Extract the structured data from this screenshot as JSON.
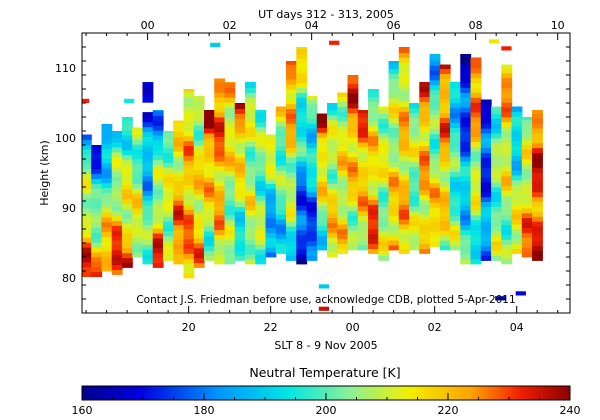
{
  "chart_data": {
    "type": "heatmap",
    "title_top": "UT days 312 - 313, 2005",
    "xlabel_bottom": "SLT 8 - 9 Nov 2005",
    "ylabel": "Height (km)",
    "annotation": "Contact J.S. Friedman before use, acknowledge CDB, plotted 5-Apr-2011",
    "top_ticks": [
      "00",
      "02",
      "04",
      "06",
      "08",
      "10"
    ],
    "top_tick_hours": [
      0,
      2,
      4,
      6,
      8,
      10
    ],
    "bottom_ticks": [
      "20",
      "22",
      "00",
      "02",
      "04"
    ],
    "bottom_tick_hours": [
      1,
      3,
      5,
      7,
      9
    ],
    "y_ticks": [
      80,
      90,
      100,
      110
    ],
    "xlim_ut_hours": [
      -1.6,
      10.3
    ],
    "ylim_km": [
      75,
      115
    ],
    "colorbar": {
      "title": "Neutral Temperature [K]",
      "min": 160,
      "max": 240,
      "ticks": [
        160,
        180,
        200,
        220,
        240
      ]
    },
    "columns": [
      {
        "ut": -1.5,
        "bottom": 80.2,
        "top": 100.5,
        "t_bottom": 232,
        "t_top": 188,
        "gaps": []
      },
      {
        "ut": -1.25,
        "bottom": 80.2,
        "top": 99.0,
        "t_bottom": 228,
        "t_top": 170,
        "gaps": []
      },
      {
        "ut": -1.0,
        "bottom": 81.0,
        "top": 102.0,
        "t_bottom": 230,
        "t_top": 175,
        "gaps": []
      },
      {
        "ut": -0.75,
        "bottom": 80.5,
        "top": 101.0,
        "t_bottom": 235,
        "t_top": 190,
        "gaps": []
      },
      {
        "ut": -0.5,
        "bottom": 81.5,
        "top": 103.0,
        "t_bottom": 225,
        "t_top": 195,
        "gaps": []
      },
      {
        "ut": -0.25,
        "bottom": 83.0,
        "top": 101.5,
        "t_bottom": 215,
        "t_top": 200,
        "gaps": []
      },
      {
        "ut": 0.0,
        "bottom": 82.0,
        "top": 108.0,
        "t_bottom": 205,
        "t_top": 170,
        "gaps": [
          [
            103.5,
            105.0
          ]
        ]
      },
      {
        "ut": 0.25,
        "bottom": 81.5,
        "top": 104.0,
        "t_bottom": 232,
        "t_top": 180,
        "gaps": []
      },
      {
        "ut": 0.5,
        "bottom": 82.5,
        "top": 101.0,
        "t_bottom": 210,
        "t_top": 205,
        "gaps": []
      },
      {
        "ut": 0.75,
        "bottom": 82.0,
        "top": 102.5,
        "t_bottom": 230,
        "t_top": 210,
        "gaps": []
      },
      {
        "ut": 1.0,
        "bottom": 80.0,
        "top": 107.0,
        "t_bottom": 225,
        "t_top": 215,
        "gaps": []
      },
      {
        "ut": 1.25,
        "bottom": 81.5,
        "top": 106.0,
        "t_bottom": 222,
        "t_top": 205,
        "gaps": []
      },
      {
        "ut": 1.5,
        "bottom": 82.5,
        "top": 104.0,
        "t_bottom": 200,
        "t_top": 235,
        "gaps": []
      },
      {
        "ut": 1.75,
        "bottom": 82.0,
        "top": 108.5,
        "t_bottom": 215,
        "t_top": 230,
        "gaps": []
      },
      {
        "ut": 2.0,
        "bottom": 82.0,
        "top": 108.0,
        "t_bottom": 200,
        "t_top": 220,
        "gaps": []
      },
      {
        "ut": 2.25,
        "bottom": 82.5,
        "top": 105.0,
        "t_bottom": 190,
        "t_top": 232,
        "gaps": []
      },
      {
        "ut": 2.5,
        "bottom": 82.0,
        "top": 108.0,
        "t_bottom": 210,
        "t_top": 205,
        "gaps": []
      },
      {
        "ut": 2.75,
        "bottom": 82.0,
        "top": 104.0,
        "t_bottom": 205,
        "t_top": 200,
        "gaps": []
      },
      {
        "ut": 3.0,
        "bottom": 83.0,
        "top": 100.5,
        "t_bottom": 175,
        "t_top": 215,
        "gaps": []
      },
      {
        "ut": 3.25,
        "bottom": 83.5,
        "top": 104.5,
        "t_bottom": 190,
        "t_top": 210,
        "gaps": []
      },
      {
        "ut": 3.5,
        "bottom": 82.5,
        "top": 111.0,
        "t_bottom": 195,
        "t_top": 230,
        "gaps": []
      },
      {
        "ut": 3.75,
        "bottom": 82.0,
        "top": 113.0,
        "t_bottom": 165,
        "t_top": 215,
        "gaps": []
      },
      {
        "ut": 4.0,
        "bottom": 82.5,
        "top": 106.0,
        "t_bottom": 170,
        "t_top": 205,
        "gaps": []
      },
      {
        "ut": 4.25,
        "bottom": 84.0,
        "top": 103.5,
        "t_bottom": 195,
        "t_top": 232,
        "gaps": []
      },
      {
        "ut": 4.5,
        "bottom": 83.0,
        "top": 105.0,
        "t_bottom": 220,
        "t_top": 200,
        "gaps": []
      },
      {
        "ut": 4.75,
        "bottom": 83.5,
        "top": 106.5,
        "t_bottom": 215,
        "t_top": 210,
        "gaps": []
      },
      {
        "ut": 5.0,
        "bottom": 84.0,
        "top": 109.0,
        "t_bottom": 205,
        "t_top": 232,
        "gaps": []
      },
      {
        "ut": 5.25,
        "bottom": 84.0,
        "top": 104.0,
        "t_bottom": 210,
        "t_top": 228,
        "gaps": []
      },
      {
        "ut": 5.5,
        "bottom": 83.5,
        "top": 107.0,
        "t_bottom": 230,
        "t_top": 205,
        "gaps": []
      },
      {
        "ut": 5.75,
        "bottom": 82.5,
        "top": 104.5,
        "t_bottom": 205,
        "t_top": 210,
        "gaps": []
      },
      {
        "ut": 6.0,
        "bottom": 84.0,
        "top": 111.0,
        "t_bottom": 222,
        "t_top": 200,
        "gaps": []
      },
      {
        "ut": 6.25,
        "bottom": 83.5,
        "top": 113.0,
        "t_bottom": 220,
        "t_top": 215,
        "gaps": []
      },
      {
        "ut": 6.5,
        "bottom": 84.0,
        "top": 105.0,
        "t_bottom": 205,
        "t_top": 205,
        "gaps": []
      },
      {
        "ut": 6.75,
        "bottom": 83.5,
        "top": 108.0,
        "t_bottom": 215,
        "t_top": 225,
        "gaps": []
      },
      {
        "ut": 7.0,
        "bottom": 84.5,
        "top": 112.0,
        "t_bottom": 225,
        "t_top": 185,
        "gaps": []
      },
      {
        "ut": 7.25,
        "bottom": 84.0,
        "top": 110.5,
        "t_bottom": 210,
        "t_top": 230,
        "gaps": []
      },
      {
        "ut": 7.5,
        "bottom": 84.0,
        "top": 108.0,
        "t_bottom": 205,
        "t_top": 190,
        "gaps": []
      },
      {
        "ut": 7.75,
        "bottom": 82.0,
        "top": 112.0,
        "t_bottom": 200,
        "t_top": 165,
        "gaps": []
      },
      {
        "ut": 8.0,
        "bottom": 82.0,
        "top": 111.5,
        "t_bottom": 195,
        "t_top": 232,
        "gaps": []
      },
      {
        "ut": 8.25,
        "bottom": 82.5,
        "top": 105.5,
        "t_bottom": 185,
        "t_top": 170,
        "gaps": []
      },
      {
        "ut": 8.5,
        "bottom": 82.5,
        "top": 104.5,
        "t_bottom": 205,
        "t_top": 200,
        "gaps": []
      },
      {
        "ut": 8.75,
        "bottom": 82.0,
        "top": 110.5,
        "t_bottom": 200,
        "t_top": 225,
        "gaps": []
      },
      {
        "ut": 9.0,
        "bottom": 83.5,
        "top": 104.5,
        "t_bottom": 220,
        "t_top": 180,
        "gaps": []
      },
      {
        "ut": 9.25,
        "bottom": 83.0,
        "top": 103.0,
        "t_bottom": 228,
        "t_top": 200,
        "gaps": []
      },
      {
        "ut": 9.5,
        "bottom": 82.5,
        "top": 104.0,
        "t_bottom": 230,
        "t_top": 230,
        "gaps": []
      }
    ],
    "isolated_cells": [
      {
        "ut": -1.55,
        "h": 105.0,
        "t": 232
      },
      {
        "ut": -0.45,
        "h": 105.0,
        "t": 195
      },
      {
        "ut": 1.65,
        "h": 113.0,
        "t": 190
      },
      {
        "ut": 4.55,
        "h": 113.3,
        "t": 232
      },
      {
        "ut": 4.3,
        "h": 78.5,
        "t": 190
      },
      {
        "ut": 4.3,
        "h": 75.3,
        "t": 235
      },
      {
        "ut": 8.45,
        "h": 113.5,
        "t": 215
      },
      {
        "ut": 8.75,
        "h": 112.5,
        "t": 232
      },
      {
        "ut": 9.1,
        "h": 77.5,
        "t": 170
      },
      {
        "ut": 8.6,
        "h": 76.8,
        "t": 165
      }
    ]
  }
}
